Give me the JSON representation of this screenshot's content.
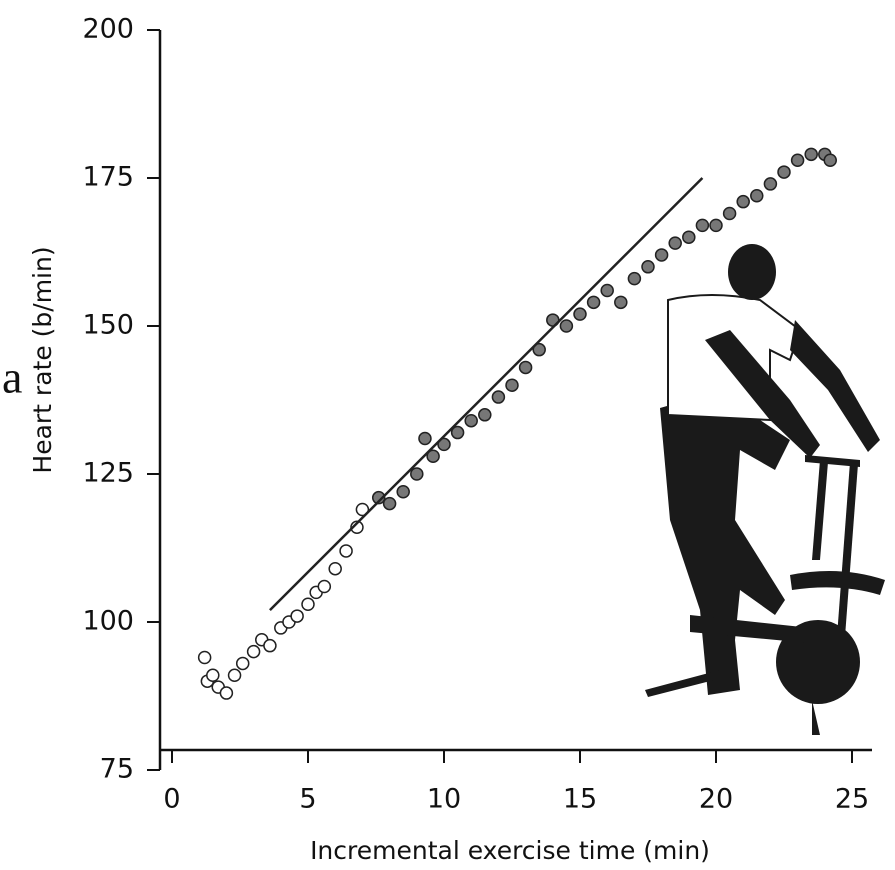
{
  "chart_data": {
    "type": "scatter",
    "panel_label": "a",
    "x_label": "Incremental exercise time (min)",
    "y_label": "Heart rate (b/min)",
    "xlim": [
      0,
      25
    ],
    "ylim": [
      75,
      200
    ],
    "xticks": [
      0,
      5,
      10,
      15,
      20,
      25
    ],
    "yticks": [
      75,
      100,
      125,
      150,
      175,
      200
    ],
    "color": "#222222",
    "x": [
      1.2,
      1.3,
      1.5,
      1.7,
      2,
      2.3,
      2.6,
      3,
      3.3,
      3.6,
      4,
      4.3,
      4.6,
      5,
      5.3,
      5.6,
      6,
      6.4,
      6.8,
      7,
      7.6,
      8,
      8.5,
      9,
      9.3,
      9.6,
      10,
      10.5,
      11,
      11.5,
      12,
      12.5,
      13,
      13.5,
      14,
      14.5,
      15,
      15.5,
      16,
      16.5,
      17,
      17.5,
      18,
      18.5,
      19,
      19.5,
      20,
      20.5,
      21,
      21.5,
      22,
      22.5,
      23,
      23.5,
      24,
      24.2
    ],
    "values": [
      94,
      90,
      91,
      89,
      88,
      91,
      93,
      95,
      97,
      96,
      99,
      100,
      101,
      103,
      105,
      106,
      109,
      112,
      116,
      119,
      121,
      120,
      122,
      125,
      131,
      128,
      130,
      132,
      134,
      135,
      138,
      140,
      143,
      146,
      151,
      150,
      152,
      154,
      156,
      154,
      158,
      160,
      162,
      164,
      165,
      167,
      167,
      169,
      171,
      172,
      174,
      176,
      178,
      179,
      179,
      178
    ],
    "fit_line": {
      "x": [
        3.6,
        19.5
      ],
      "y": [
        102,
        175
      ]
    }
  }
}
